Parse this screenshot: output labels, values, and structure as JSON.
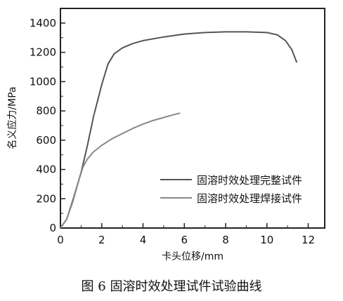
{
  "chart_data": {
    "type": "line",
    "xlabel": "卡头位移/mm",
    "ylabel": "名义应力/MPa",
    "xlim": [
      0,
      12.8
    ],
    "ylim": [
      0,
      1500
    ],
    "xticks": [
      0,
      2,
      4,
      6,
      8,
      10,
      12
    ],
    "yticks": [
      0,
      200,
      400,
      600,
      800,
      1000,
      1200,
      1400
    ],
    "legend_position": "lower-right",
    "grid": false,
    "series": [
      {
        "name": "固溶时效处理完整试件",
        "color": "#555555",
        "x": [
          0,
          0.3,
          0.6,
          1.0,
          1.3,
          1.6,
          2.0,
          2.3,
          2.6,
          3.0,
          3.5,
          4.0,
          5.0,
          6.0,
          7.0,
          8.0,
          9.0,
          10.0,
          10.5,
          10.9,
          11.2,
          11.45
        ],
        "y": [
          0,
          60,
          190,
          380,
          560,
          760,
          980,
          1120,
          1190,
          1230,
          1260,
          1280,
          1305,
          1325,
          1335,
          1340,
          1340,
          1335,
          1320,
          1280,
          1220,
          1130
        ]
      },
      {
        "name": "固溶时效处理焊接试件",
        "color": "#888888",
        "x": [
          0,
          0.3,
          0.6,
          0.9,
          1.1,
          1.3,
          1.6,
          2.0,
          2.5,
          3.0,
          3.5,
          4.0,
          4.5,
          5.0,
          5.5,
          5.8
        ],
        "y": [
          0,
          60,
          180,
          330,
          420,
          470,
          520,
          565,
          610,
          645,
          680,
          710,
          735,
          755,
          775,
          785
        ]
      }
    ]
  },
  "caption": "图 6    固溶时效处理试件试验曲线"
}
